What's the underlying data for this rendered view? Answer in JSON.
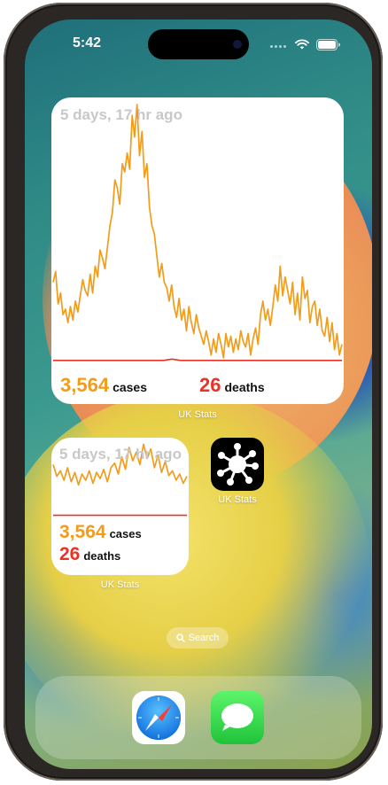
{
  "status_bar": {
    "time": "5:42"
  },
  "widget_large": {
    "time_ago": "5 days, 17 hr ago",
    "cases_value": "3,564",
    "cases_unit": "cases",
    "deaths_value": "26",
    "deaths_unit": "deaths",
    "label": "UK Stats",
    "chart_data": {
      "type": "line",
      "series": [
        {
          "values": [
            0.34,
            0.38,
            0.26,
            0.3,
            0.22,
            0.24,
            0.19,
            0.25,
            0.2,
            0.27,
            0.23,
            0.29,
            0.35,
            0.31,
            0.29,
            0.37,
            0.3,
            0.4,
            0.36,
            0.46,
            0.43,
            0.39,
            0.47,
            0.55,
            0.6,
            0.72,
            0.69,
            0.63,
            0.78,
            0.75,
            0.82,
            0.76,
            0.96,
            0.88,
            1.0,
            0.81,
            0.9,
            0.73,
            0.78,
            0.62,
            0.55,
            0.52,
            0.44,
            0.36,
            0.41,
            0.34,
            0.32,
            0.27,
            0.33,
            0.25,
            0.21,
            0.28,
            0.2,
            0.24,
            0.16,
            0.25,
            0.19,
            0.15,
            0.22,
            0.17,
            0.14,
            0.11,
            0.16,
            0.12,
            0.07,
            0.13,
            0.08,
            0.15,
            0.11,
            0.06,
            0.15,
            0.1,
            0.14,
            0.08,
            0.13,
            0.09,
            0.16,
            0.12,
            0.1,
            0.15,
            0.07,
            0.13,
            0.17,
            0.11,
            0.22,
            0.27,
            0.2,
            0.24,
            0.18,
            0.25,
            0.33,
            0.27,
            0.4,
            0.29,
            0.36,
            0.31,
            0.26,
            0.34,
            0.22,
            0.3,
            0.2,
            0.36,
            0.28,
            0.31,
            0.19,
            0.25,
            0.27,
            0.18,
            0.24,
            0.16,
            0.14,
            0.21,
            0.12,
            0.19,
            0.09,
            0.15,
            0.07,
            0.11
          ],
          "color": "#f39c19"
        },
        {
          "values": [
            0.05,
            0.05,
            0.05,
            0.05,
            0.05,
            0.05,
            0.05,
            0.05,
            0.05,
            0.05,
            0.05,
            0.05,
            0.05,
            0.05,
            0.055,
            0.05,
            0.05,
            0.05,
            0.05,
            0.05,
            0.05,
            0.05,
            0.05,
            0.05,
            0.05,
            0.05,
            0.05,
            0.05,
            0.05,
            0.05,
            0.05,
            0.05,
            0.05,
            0.05,
            0.05
          ],
          "color": "#ea3324"
        }
      ]
    }
  },
  "widget_small": {
    "time_ago": "5 days, 17 hr ago",
    "cases_value": "3,564",
    "cases_unit": "cases",
    "deaths_value": "26",
    "deaths_unit": "deaths",
    "label": "UK Stats",
    "chart_data": {
      "type": "line",
      "series": [
        {
          "values": [
            0.7,
            0.55,
            0.62,
            0.5,
            0.66,
            0.48,
            0.6,
            0.44,
            0.58,
            0.5,
            0.62,
            0.46,
            0.6,
            0.52,
            0.64,
            0.48,
            0.66,
            0.72,
            0.58,
            0.8,
            0.64,
            0.92,
            0.75,
            0.86,
            0.7,
            0.96,
            0.78,
            0.9,
            0.66,
            0.82,
            0.6,
            0.74,
            0.56,
            0.62,
            0.5,
            0.58,
            0.46,
            0.55
          ],
          "color": "#f39c19"
        },
        {
          "values": [
            0.05,
            0.05,
            0.05,
            0.05,
            0.05,
            0.05,
            0.05,
            0.05,
            0.05,
            0.05,
            0.05,
            0.05
          ],
          "color": "#ea3324"
        }
      ]
    }
  },
  "app_icon": {
    "label": "UK Stats",
    "icon": "virus-icon"
  },
  "search": {
    "label": "Search"
  },
  "dock": {
    "apps": [
      "Safari",
      "Messages"
    ]
  }
}
